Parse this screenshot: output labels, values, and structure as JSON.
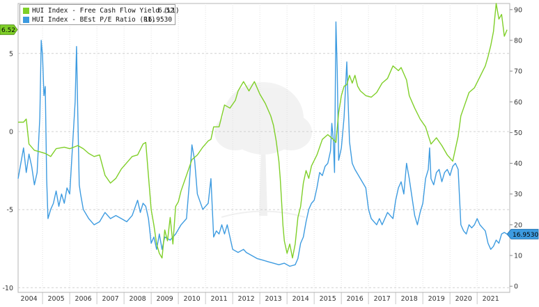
{
  "chart_data": {
    "type": "line",
    "title": "",
    "legend_placement": "top-left",
    "grid": true,
    "x": {
      "ticks": [
        "2004",
        "2005",
        "2006",
        "2007",
        "2008",
        "2009",
        "2010",
        "2011",
        "2012",
        "2013",
        "2014",
        "2015",
        "2016",
        "2017",
        "2018",
        "2019",
        "2020",
        "2021"
      ],
      "range": [
        2003.6,
        2021.7
      ]
    },
    "y_left": {
      "ticks": [
        "5",
        "0",
        "-5",
        "-10"
      ],
      "range": [
        -10.3,
        8.2
      ]
    },
    "y_right": {
      "ticks": [
        "90",
        "80",
        "70",
        "60",
        "50",
        "40",
        "30",
        "20",
        "10",
        "0"
      ],
      "range": [
        -2,
        92
      ]
    },
    "series": [
      {
        "name": "HUI Index - Free Cash Flow Yield (L1)",
        "last_value": "6.52",
        "axis": "left",
        "color": "#7fcf28",
        "points": [
          [
            2003.6,
            0.6
          ],
          [
            2003.8,
            0.6
          ],
          [
            2003.9,
            0.8
          ],
          [
            2004.0,
            -0.8
          ],
          [
            2004.2,
            -1.2
          ],
          [
            2004.4,
            -1.3
          ],
          [
            2004.6,
            -1.4
          ],
          [
            2004.8,
            -1.6
          ],
          [
            2005.0,
            -1.1
          ],
          [
            2005.3,
            -1.0
          ],
          [
            2005.5,
            -1.1
          ],
          [
            2005.8,
            -0.9
          ],
          [
            2006.0,
            -1.1
          ],
          [
            2006.2,
            -1.4
          ],
          [
            2006.4,
            -1.6
          ],
          [
            2006.6,
            -1.5
          ],
          [
            2006.8,
            -2.8
          ],
          [
            2007.0,
            -3.3
          ],
          [
            2007.2,
            -3.0
          ],
          [
            2007.4,
            -2.4
          ],
          [
            2007.6,
            -2.0
          ],
          [
            2007.8,
            -1.6
          ],
          [
            2008.0,
            -1.5
          ],
          [
            2008.2,
            -0.8
          ],
          [
            2008.3,
            -0.7
          ],
          [
            2008.5,
            -5.0
          ],
          [
            2008.6,
            -6.0
          ],
          [
            2008.7,
            -7.2
          ],
          [
            2008.8,
            -7.8
          ],
          [
            2008.9,
            -8.1
          ],
          [
            2009.0,
            -6.3
          ],
          [
            2009.1,
            -7.0
          ],
          [
            2009.2,
            -5.5
          ],
          [
            2009.3,
            -7.2
          ],
          [
            2009.4,
            -4.8
          ],
          [
            2009.5,
            -4.5
          ],
          [
            2009.6,
            -3.8
          ],
          [
            2009.8,
            -2.8
          ],
          [
            2010.0,
            -1.8
          ],
          [
            2010.2,
            -1.5
          ],
          [
            2010.4,
            -1.0
          ],
          [
            2010.6,
            -0.6
          ],
          [
            2010.7,
            -0.5
          ],
          [
            2010.8,
            0.3
          ],
          [
            2011.0,
            0.3
          ],
          [
            2011.2,
            1.7
          ],
          [
            2011.4,
            1.5
          ],
          [
            2011.6,
            2.0
          ],
          [
            2011.7,
            2.6
          ],
          [
            2011.9,
            3.2
          ],
          [
            2012.0,
            2.9
          ],
          [
            2012.1,
            2.6
          ],
          [
            2012.3,
            3.2
          ],
          [
            2012.5,
            2.4
          ],
          [
            2012.7,
            1.8
          ],
          [
            2012.9,
            1.0
          ],
          [
            2013.0,
            0.4
          ],
          [
            2013.1,
            -0.6
          ],
          [
            2013.2,
            -1.9
          ],
          [
            2013.25,
            -3.0
          ],
          [
            2013.3,
            -4.5
          ],
          [
            2013.35,
            -6.0
          ],
          [
            2013.4,
            -7.0
          ],
          [
            2013.5,
            -7.8
          ],
          [
            2013.6,
            -7.2
          ],
          [
            2013.7,
            -8.1
          ],
          [
            2013.8,
            -7.2
          ],
          [
            2013.9,
            -5.5
          ],
          [
            2014.0,
            -4.8
          ],
          [
            2014.1,
            -3.3
          ],
          [
            2014.2,
            -2.5
          ],
          [
            2014.3,
            -3.0
          ],
          [
            2014.4,
            -2.2
          ],
          [
            2014.6,
            -1.5
          ],
          [
            2014.8,
            -0.5
          ],
          [
            2015.0,
            -0.2
          ],
          [
            2015.2,
            -0.5
          ],
          [
            2015.3,
            -0.7
          ],
          [
            2015.4,
            1.2
          ],
          [
            2015.5,
            2.3
          ],
          [
            2015.6,
            2.9
          ],
          [
            2015.7,
            3.0
          ],
          [
            2015.8,
            3.6
          ],
          [
            2015.9,
            3.1
          ],
          [
            2016.0,
            3.6
          ],
          [
            2016.1,
            2.9
          ],
          [
            2016.2,
            2.6
          ],
          [
            2016.4,
            2.3
          ],
          [
            2016.6,
            2.2
          ],
          [
            2016.8,
            2.5
          ],
          [
            2017.0,
            3.1
          ],
          [
            2017.2,
            3.4
          ],
          [
            2017.4,
            4.2
          ],
          [
            2017.6,
            3.9
          ],
          [
            2017.7,
            4.1
          ],
          [
            2017.9,
            3.3
          ],
          [
            2018.0,
            2.3
          ],
          [
            2018.2,
            1.5
          ],
          [
            2018.4,
            0.8
          ],
          [
            2018.6,
            0.3
          ],
          [
            2018.8,
            -0.8
          ],
          [
            2019.0,
            -0.4
          ],
          [
            2019.2,
            -0.9
          ],
          [
            2019.4,
            -1.5
          ],
          [
            2019.6,
            -1.9
          ],
          [
            2019.8,
            -0.3
          ],
          [
            2019.9,
            1.0
          ],
          [
            2020.0,
            1.5
          ],
          [
            2020.2,
            2.5
          ],
          [
            2020.4,
            2.8
          ],
          [
            2020.6,
            3.5
          ],
          [
            2020.8,
            4.2
          ],
          [
            2020.9,
            4.8
          ],
          [
            2021.0,
            5.5
          ],
          [
            2021.1,
            6.4
          ],
          [
            2021.2,
            8.2
          ],
          [
            2021.3,
            7.2
          ],
          [
            2021.4,
            7.5
          ],
          [
            2021.5,
            6.1
          ],
          [
            2021.55,
            6.3
          ],
          [
            2021.6,
            6.52
          ]
        ]
      },
      {
        "name": "HUI Index - BEst P/E Ratio (R1)",
        "last_value": "16.9530",
        "axis": "right",
        "color": "#3d9be0",
        "points": [
          [
            2003.6,
            35.0
          ],
          [
            2003.7,
            40.0
          ],
          [
            2003.8,
            45.0
          ],
          [
            2003.9,
            37.0
          ],
          [
            2004.0,
            43.0
          ],
          [
            2004.1,
            39.0
          ],
          [
            2004.2,
            33.0
          ],
          [
            2004.3,
            37.0
          ],
          [
            2004.4,
            55.0
          ],
          [
            2004.45,
            80.0
          ],
          [
            2004.5,
            75.0
          ],
          [
            2004.55,
            62.0
          ],
          [
            2004.6,
            65.0
          ],
          [
            2004.65,
            35.0
          ],
          [
            2004.7,
            22.0
          ],
          [
            2004.8,
            25.0
          ],
          [
            2004.9,
            27.0
          ],
          [
            2005.0,
            31.0
          ],
          [
            2005.1,
            26.0
          ],
          [
            2005.2,
            30.0
          ],
          [
            2005.3,
            27.0
          ],
          [
            2005.4,
            32.0
          ],
          [
            2005.5,
            30.0
          ],
          [
            2005.6,
            45.0
          ],
          [
            2005.7,
            60.0
          ],
          [
            2005.75,
            78.0
          ],
          [
            2005.8,
            55.0
          ],
          [
            2005.85,
            33.0
          ],
          [
            2005.9,
            30.0
          ],
          [
            2006.0,
            25.0
          ],
          [
            2006.2,
            22.0
          ],
          [
            2006.4,
            20.0
          ],
          [
            2006.6,
            21.0
          ],
          [
            2006.8,
            24.0
          ],
          [
            2007.0,
            22.0
          ],
          [
            2007.2,
            23.0
          ],
          [
            2007.4,
            22.0
          ],
          [
            2007.6,
            21.0
          ],
          [
            2007.8,
            23.0
          ],
          [
            2008.0,
            28.0
          ],
          [
            2008.1,
            24.0
          ],
          [
            2008.2,
            27.0
          ],
          [
            2008.3,
            26.0
          ],
          [
            2008.4,
            22.0
          ],
          [
            2008.5,
            14.0
          ],
          [
            2008.6,
            16.0
          ],
          [
            2008.7,
            12.0
          ],
          [
            2008.8,
            17.0
          ],
          [
            2008.9,
            12.0
          ],
          [
            2009.0,
            16.0
          ],
          [
            2009.2,
            15.0
          ],
          [
            2009.4,
            17.0
          ],
          [
            2009.6,
            20.0
          ],
          [
            2009.8,
            22.0
          ],
          [
            2009.9,
            33.0
          ],
          [
            2010.0,
            46.0
          ],
          [
            2010.1,
            41.0
          ],
          [
            2010.2,
            30.0
          ],
          [
            2010.4,
            25.0
          ],
          [
            2010.6,
            27.0
          ],
          [
            2010.7,
            35.0
          ],
          [
            2010.8,
            16.0
          ],
          [
            2010.9,
            18.0
          ],
          [
            2011.0,
            17.0
          ],
          [
            2011.1,
            20.0
          ],
          [
            2011.2,
            17.0
          ],
          [
            2011.3,
            20.0
          ],
          [
            2011.4,
            16.0
          ],
          [
            2011.5,
            12.0
          ],
          [
            2011.7,
            11.0
          ],
          [
            2011.9,
            12.0
          ],
          [
            2012.0,
            11.0
          ],
          [
            2012.2,
            10.0
          ],
          [
            2012.4,
            9.0
          ],
          [
            2012.6,
            8.5
          ],
          [
            2012.8,
            8.0
          ],
          [
            2013.0,
            7.5
          ],
          [
            2013.2,
            7.0
          ],
          [
            2013.4,
            7.5
          ],
          [
            2013.6,
            6.5
          ],
          [
            2013.8,
            7.0
          ],
          [
            2013.9,
            9.0
          ],
          [
            2014.0,
            14.0
          ],
          [
            2014.1,
            16.0
          ],
          [
            2014.2,
            21.0
          ],
          [
            2014.3,
            25.0
          ],
          [
            2014.4,
            27.0
          ],
          [
            2014.5,
            28.0
          ],
          [
            2014.6,
            32.0
          ],
          [
            2014.7,
            37.0
          ],
          [
            2014.8,
            36.0
          ],
          [
            2014.9,
            39.0
          ],
          [
            2015.0,
            40.0
          ],
          [
            2015.1,
            44.0
          ],
          [
            2015.15,
            53.0
          ],
          [
            2015.2,
            48.0
          ],
          [
            2015.25,
            37.0
          ],
          [
            2015.3,
            86.0
          ],
          [
            2015.35,
            70.0
          ],
          [
            2015.4,
            41.0
          ],
          [
            2015.5,
            45.0
          ],
          [
            2015.6,
            55.0
          ],
          [
            2015.7,
            73.0
          ],
          [
            2015.75,
            60.0
          ],
          [
            2015.8,
            47.0
          ],
          [
            2015.9,
            40.0
          ],
          [
            2016.0,
            38.0
          ],
          [
            2016.2,
            35.0
          ],
          [
            2016.4,
            32.0
          ],
          [
            2016.5,
            25.0
          ],
          [
            2016.6,
            22.0
          ],
          [
            2016.8,
            20.0
          ],
          [
            2016.9,
            22.0
          ],
          [
            2017.0,
            20.0
          ],
          [
            2017.2,
            24.0
          ],
          [
            2017.4,
            22.0
          ],
          [
            2017.5,
            28.0
          ],
          [
            2017.6,
            32.0
          ],
          [
            2017.7,
            34.0
          ],
          [
            2017.8,
            30.0
          ],
          [
            2017.9,
            40.0
          ],
          [
            2018.0,
            35.0
          ],
          [
            2018.1,
            29.0
          ],
          [
            2018.2,
            23.0
          ],
          [
            2018.3,
            20.0
          ],
          [
            2018.4,
            24.0
          ],
          [
            2018.5,
            27.0
          ],
          [
            2018.6,
            35.0
          ],
          [
            2018.7,
            38.0
          ],
          [
            2018.75,
            45.0
          ],
          [
            2018.8,
            35.0
          ],
          [
            2018.9,
            33.0
          ],
          [
            2019.0,
            37.0
          ],
          [
            2019.1,
            38.0
          ],
          [
            2019.2,
            34.0
          ],
          [
            2019.3,
            37.0
          ],
          [
            2019.4,
            38.0
          ],
          [
            2019.5,
            36.0
          ],
          [
            2019.6,
            39.0
          ],
          [
            2019.7,
            40.0
          ],
          [
            2019.8,
            38.0
          ],
          [
            2019.9,
            20.0
          ],
          [
            2020.0,
            18.0
          ],
          [
            2020.1,
            17.0
          ],
          [
            2020.2,
            20.0
          ],
          [
            2020.3,
            19.0
          ],
          [
            2020.4,
            20.0
          ],
          [
            2020.5,
            22.0
          ],
          [
            2020.6,
            20.0
          ],
          [
            2020.7,
            19.0
          ],
          [
            2020.8,
            18.0
          ],
          [
            2020.9,
            14.0
          ],
          [
            2021.0,
            12.0
          ],
          [
            2021.1,
            13.0
          ],
          [
            2021.2,
            15.0
          ],
          [
            2021.3,
            14.0
          ],
          [
            2021.4,
            17.0
          ],
          [
            2021.5,
            17.5
          ],
          [
            2021.6,
            16.953
          ]
        ]
      }
    ]
  }
}
